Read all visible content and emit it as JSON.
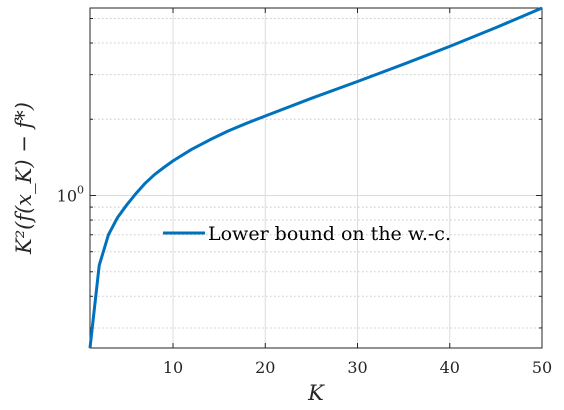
{
  "chart_data": {
    "type": "line",
    "xlabel": "K",
    "ylabel": "K²(f(x_K) − f*)",
    "xlim": [
      1,
      50
    ],
    "ylim": [
      0.25,
      5.5
    ],
    "yscale": "log",
    "grid": true,
    "legend_position": "center",
    "x_ticks": [
      10,
      20,
      30,
      40,
      50
    ],
    "x_tick_labels": [
      "10",
      "20",
      "30",
      "40",
      "50"
    ],
    "y_ticks": [
      1
    ],
    "y_tick_base": "10",
    "y_tick_exponent": "0",
    "series": [
      {
        "name": "Lower bound on the w.-c.",
        "color": "#0072BD",
        "x": [
          1,
          2,
          3,
          4,
          5,
          6,
          7,
          8,
          9,
          10,
          12,
          14,
          16,
          18,
          20,
          25,
          30,
          35,
          40,
          45,
          50
        ],
        "y": [
          0.25,
          0.53,
          0.7,
          0.82,
          0.92,
          1.02,
          1.12,
          1.21,
          1.29,
          1.37,
          1.52,
          1.66,
          1.8,
          1.93,
          2.06,
          2.42,
          2.82,
          3.3,
          3.88,
          4.6,
          5.5
        ]
      }
    ]
  }
}
